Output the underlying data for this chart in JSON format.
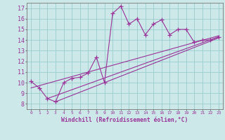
{
  "bg_color": "#cce8e8",
  "line_color": "#993399",
  "grid_color": "#99cccc",
  "xlabel": "Windchill (Refroidissement éolien,°C)",
  "ylabel_values": [
    8,
    9,
    10,
    11,
    12,
    13,
    14,
    15,
    16,
    17
  ],
  "ylim": [
    7.5,
    17.5
  ],
  "xlim": [
    -0.5,
    23.5
  ],
  "xtick_labels": [
    "0",
    "1",
    "2",
    "3",
    "4",
    "5",
    "6",
    "7",
    "8",
    "9",
    "10",
    "11",
    "12",
    "13",
    "14",
    "15",
    "16",
    "17",
    "18",
    "19",
    "20",
    "21",
    "22",
    "23"
  ],
  "scatter_x": [
    0,
    1,
    2,
    3,
    4,
    5,
    6,
    7,
    8,
    9,
    10,
    11,
    12,
    13,
    14,
    15,
    16,
    17,
    18,
    19,
    20,
    21,
    22,
    23
  ],
  "scatter_y": [
    10.1,
    9.5,
    8.5,
    8.2,
    10.0,
    10.4,
    10.5,
    10.9,
    12.4,
    10.0,
    16.5,
    17.2,
    15.5,
    16.0,
    14.5,
    15.5,
    15.9,
    14.5,
    15.0,
    15.0,
    13.8,
    14.0,
    14.0,
    14.3
  ],
  "line1_x": [
    0,
    23
  ],
  "line1_y": [
    9.5,
    14.4
  ],
  "line2_x": [
    2,
    23
  ],
  "line2_y": [
    8.5,
    14.3
  ],
  "line3_x": [
    3,
    23
  ],
  "line3_y": [
    8.2,
    14.2
  ]
}
